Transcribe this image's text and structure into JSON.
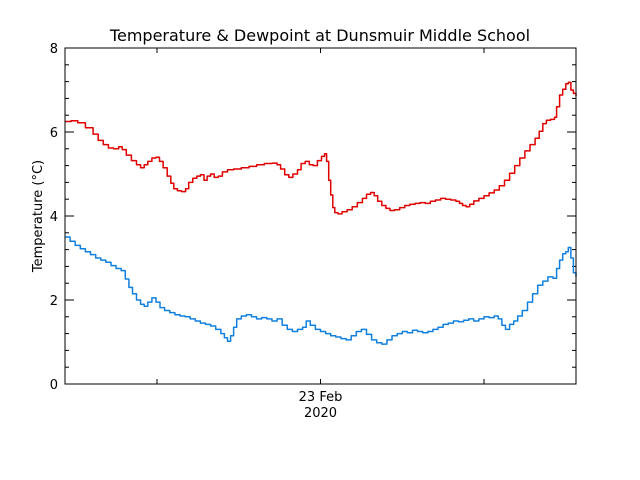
{
  "chart_data": {
    "type": "line",
    "title": "Temperature & Dewpoint at Dunsmuir Middle School",
    "xlabel": "",
    "ylabel": "Temperature (°C)",
    "x_tick_labels": [
      {
        "line1": "23 Feb",
        "line2": "2020",
        "x": 0.5
      }
    ],
    "x_range": [
      0,
      1
    ],
    "ylim": [
      0,
      8
    ],
    "y_ticks": [
      0,
      2,
      4,
      6,
      8
    ],
    "grid": false,
    "series": [
      {
        "color": "#e00000",
        "points": [
          [
            0.0,
            6.25
          ],
          [
            0.012,
            6.27
          ],
          [
            0.025,
            6.22
          ],
          [
            0.04,
            6.1
          ],
          [
            0.055,
            5.95
          ],
          [
            0.065,
            5.8
          ],
          [
            0.075,
            5.7
          ],
          [
            0.085,
            5.62
          ],
          [
            0.095,
            5.6
          ],
          [
            0.105,
            5.65
          ],
          [
            0.112,
            5.58
          ],
          [
            0.12,
            5.45
          ],
          [
            0.13,
            5.32
          ],
          [
            0.14,
            5.22
          ],
          [
            0.148,
            5.15
          ],
          [
            0.155,
            5.22
          ],
          [
            0.162,
            5.3
          ],
          [
            0.17,
            5.38
          ],
          [
            0.178,
            5.4
          ],
          [
            0.185,
            5.3
          ],
          [
            0.192,
            5.15
          ],
          [
            0.2,
            4.95
          ],
          [
            0.207,
            4.78
          ],
          [
            0.213,
            4.65
          ],
          [
            0.22,
            4.6
          ],
          [
            0.228,
            4.58
          ],
          [
            0.236,
            4.65
          ],
          [
            0.242,
            4.8
          ],
          [
            0.25,
            4.9
          ],
          [
            0.258,
            4.95
          ],
          [
            0.265,
            4.98
          ],
          [
            0.272,
            4.85
          ],
          [
            0.278,
            4.95
          ],
          [
            0.285,
            5.0
          ],
          [
            0.292,
            4.92
          ],
          [
            0.3,
            4.95
          ],
          [
            0.308,
            5.05
          ],
          [
            0.318,
            5.1
          ],
          [
            0.33,
            5.12
          ],
          [
            0.345,
            5.15
          ],
          [
            0.36,
            5.18
          ],
          [
            0.375,
            5.22
          ],
          [
            0.39,
            5.25
          ],
          [
            0.405,
            5.26
          ],
          [
            0.415,
            5.22
          ],
          [
            0.422,
            5.12
          ],
          [
            0.43,
            4.98
          ],
          [
            0.438,
            4.92
          ],
          [
            0.446,
            5.0
          ],
          [
            0.455,
            5.1
          ],
          [
            0.462,
            5.25
          ],
          [
            0.47,
            5.3
          ],
          [
            0.478,
            5.22
          ],
          [
            0.486,
            5.2
          ],
          [
            0.494,
            5.32
          ],
          [
            0.502,
            5.42
          ],
          [
            0.508,
            5.48
          ],
          [
            0.512,
            5.3
          ],
          [
            0.516,
            4.85
          ],
          [
            0.52,
            4.5
          ],
          [
            0.524,
            4.2
          ],
          [
            0.528,
            4.08
          ],
          [
            0.534,
            4.05
          ],
          [
            0.542,
            4.1
          ],
          [
            0.552,
            4.15
          ],
          [
            0.562,
            4.22
          ],
          [
            0.572,
            4.32
          ],
          [
            0.582,
            4.42
          ],
          [
            0.59,
            4.52
          ],
          [
            0.598,
            4.56
          ],
          [
            0.605,
            4.48
          ],
          [
            0.612,
            4.35
          ],
          [
            0.62,
            4.25
          ],
          [
            0.628,
            4.18
          ],
          [
            0.636,
            4.13
          ],
          [
            0.645,
            4.15
          ],
          [
            0.655,
            4.2
          ],
          [
            0.665,
            4.25
          ],
          [
            0.675,
            4.28
          ],
          [
            0.685,
            4.3
          ],
          [
            0.695,
            4.32
          ],
          [
            0.705,
            4.3
          ],
          [
            0.715,
            4.35
          ],
          [
            0.725,
            4.38
          ],
          [
            0.735,
            4.42
          ],
          [
            0.745,
            4.4
          ],
          [
            0.755,
            4.38
          ],
          [
            0.765,
            4.35
          ],
          [
            0.772,
            4.3
          ],
          [
            0.778,
            4.25
          ],
          [
            0.785,
            4.22
          ],
          [
            0.792,
            4.28
          ],
          [
            0.8,
            4.36
          ],
          [
            0.81,
            4.42
          ],
          [
            0.82,
            4.48
          ],
          [
            0.83,
            4.55
          ],
          [
            0.84,
            4.62
          ],
          [
            0.85,
            4.72
          ],
          [
            0.86,
            4.85
          ],
          [
            0.87,
            5.02
          ],
          [
            0.88,
            5.2
          ],
          [
            0.89,
            5.38
          ],
          [
            0.9,
            5.55
          ],
          [
            0.91,
            5.7
          ],
          [
            0.92,
            5.85
          ],
          [
            0.928,
            6.02
          ],
          [
            0.935,
            6.2
          ],
          [
            0.942,
            6.28
          ],
          [
            0.95,
            6.3
          ],
          [
            0.958,
            6.35
          ],
          [
            0.962,
            6.6
          ],
          [
            0.968,
            6.88
          ],
          [
            0.974,
            7.02
          ],
          [
            0.98,
            7.15
          ],
          [
            0.985,
            7.18
          ],
          [
            0.99,
            7.0
          ],
          [
            0.995,
            6.92
          ],
          [
            1.0,
            6.85
          ]
        ]
      },
      {
        "color": "#1080e0",
        "points": [
          [
            0.0,
            3.5
          ],
          [
            0.01,
            3.4
          ],
          [
            0.02,
            3.3
          ],
          [
            0.03,
            3.22
          ],
          [
            0.04,
            3.15
          ],
          [
            0.05,
            3.08
          ],
          [
            0.06,
            3.0
          ],
          [
            0.07,
            2.95
          ],
          [
            0.08,
            2.9
          ],
          [
            0.09,
            2.82
          ],
          [
            0.1,
            2.75
          ],
          [
            0.11,
            2.7
          ],
          [
            0.118,
            2.5
          ],
          [
            0.125,
            2.3
          ],
          [
            0.132,
            2.15
          ],
          [
            0.14,
            2.0
          ],
          [
            0.148,
            1.9
          ],
          [
            0.155,
            1.85
          ],
          [
            0.162,
            1.95
          ],
          [
            0.17,
            2.05
          ],
          [
            0.178,
            1.95
          ],
          [
            0.186,
            1.82
          ],
          [
            0.195,
            1.75
          ],
          [
            0.205,
            1.7
          ],
          [
            0.215,
            1.65
          ],
          [
            0.225,
            1.62
          ],
          [
            0.235,
            1.6
          ],
          [
            0.245,
            1.55
          ],
          [
            0.255,
            1.5
          ],
          [
            0.265,
            1.45
          ],
          [
            0.275,
            1.42
          ],
          [
            0.285,
            1.38
          ],
          [
            0.295,
            1.3
          ],
          [
            0.305,
            1.2
          ],
          [
            0.312,
            1.1
          ],
          [
            0.318,
            1.02
          ],
          [
            0.324,
            1.15
          ],
          [
            0.33,
            1.35
          ],
          [
            0.336,
            1.55
          ],
          [
            0.345,
            1.62
          ],
          [
            0.355,
            1.65
          ],
          [
            0.365,
            1.6
          ],
          [
            0.375,
            1.55
          ],
          [
            0.385,
            1.58
          ],
          [
            0.395,
            1.55
          ],
          [
            0.405,
            1.5
          ],
          [
            0.415,
            1.55
          ],
          [
            0.425,
            1.4
          ],
          [
            0.435,
            1.3
          ],
          [
            0.445,
            1.25
          ],
          [
            0.455,
            1.3
          ],
          [
            0.465,
            1.35
          ],
          [
            0.472,
            1.5
          ],
          [
            0.48,
            1.4
          ],
          [
            0.49,
            1.3
          ],
          [
            0.5,
            1.25
          ],
          [
            0.51,
            1.2
          ],
          [
            0.52,
            1.15
          ],
          [
            0.53,
            1.12
          ],
          [
            0.54,
            1.08
          ],
          [
            0.55,
            1.05
          ],
          [
            0.56,
            1.15
          ],
          [
            0.57,
            1.25
          ],
          [
            0.58,
            1.3
          ],
          [
            0.59,
            1.18
          ],
          [
            0.6,
            1.05
          ],
          [
            0.61,
            0.98
          ],
          [
            0.62,
            0.95
          ],
          [
            0.63,
            1.05
          ],
          [
            0.64,
            1.15
          ],
          [
            0.65,
            1.2
          ],
          [
            0.66,
            1.25
          ],
          [
            0.67,
            1.22
          ],
          [
            0.68,
            1.28
          ],
          [
            0.69,
            1.25
          ],
          [
            0.7,
            1.22
          ],
          [
            0.71,
            1.25
          ],
          [
            0.72,
            1.3
          ],
          [
            0.73,
            1.35
          ],
          [
            0.74,
            1.42
          ],
          [
            0.75,
            1.45
          ],
          [
            0.76,
            1.5
          ],
          [
            0.77,
            1.48
          ],
          [
            0.78,
            1.52
          ],
          [
            0.79,
            1.55
          ],
          [
            0.8,
            1.5
          ],
          [
            0.81,
            1.55
          ],
          [
            0.82,
            1.6
          ],
          [
            0.83,
            1.58
          ],
          [
            0.84,
            1.62
          ],
          [
            0.848,
            1.55
          ],
          [
            0.855,
            1.4
          ],
          [
            0.862,
            1.3
          ],
          [
            0.87,
            1.42
          ],
          [
            0.878,
            1.5
          ],
          [
            0.886,
            1.62
          ],
          [
            0.895,
            1.75
          ],
          [
            0.905,
            1.95
          ],
          [
            0.915,
            2.15
          ],
          [
            0.925,
            2.35
          ],
          [
            0.935,
            2.45
          ],
          [
            0.945,
            2.55
          ],
          [
            0.955,
            2.52
          ],
          [
            0.962,
            2.75
          ],
          [
            0.968,
            2.95
          ],
          [
            0.974,
            3.1
          ],
          [
            0.98,
            3.15
          ],
          [
            0.985,
            3.25
          ],
          [
            0.99,
            3.0
          ],
          [
            0.995,
            2.65
          ],
          [
            1.0,
            2.55
          ]
        ]
      }
    ]
  }
}
